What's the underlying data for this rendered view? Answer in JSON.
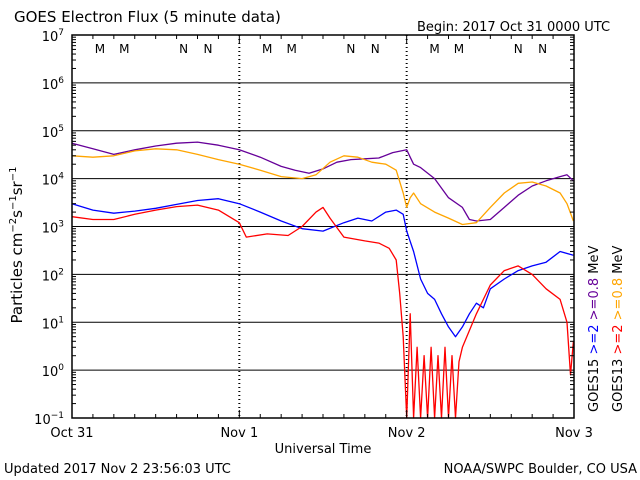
{
  "header": {
    "title": "GOES Electron Flux (5 minute data)",
    "begin": "Begin: 2017 Oct 31 0000 UTC"
  },
  "footer": {
    "updated": "Updated 2017 Nov  2 23:56:03 UTC",
    "source": "NOAA/SWPC Boulder, CO USA"
  },
  "colors": {
    "goes15_2mev": "#0000ff",
    "goes13_2mev": "#ff0000",
    "goes15_08mev": "#660099",
    "goes13_08mev": "#ffa500",
    "marker_m": "#ff0000",
    "marker_n": "#0000ff"
  },
  "chart_data": {
    "type": "line",
    "title": "GOES Electron Flux (5 minute data)",
    "xlabel": "Universal Time",
    "ylabel": "Particles cm-2s-1sr-1",
    "yscale": "log",
    "ylim": [
      0.1,
      10000000
    ],
    "xlim": [
      "2017-10-31 00:00",
      "2017-11-03 00:00"
    ],
    "x_ticks": [
      "Oct 31",
      "Nov 1",
      "Nov 2",
      "Nov 3"
    ],
    "y_tick_exponents": [
      -1,
      0,
      1,
      2,
      3,
      4,
      5,
      6,
      7
    ],
    "threshold_line": 1000,
    "grid": true,
    "legend": {
      "position": "right",
      "rows": [
        [
          {
            "text": "GOES15",
            "color": "#000000"
          },
          {
            "text": ">=2",
            "color": "#0000ff"
          },
          {
            "text": ">=0.8",
            "color": "#660099"
          },
          {
            "text": "MeV",
            "color": "#000000"
          }
        ],
        [
          {
            "text": "GOES13",
            "color": "#000000"
          },
          {
            "text": ">=2",
            "color": "#ff0000"
          },
          {
            "text": ">=0.8",
            "color": "#ffa500"
          },
          {
            "text": "MeV",
            "color": "#000000"
          }
        ]
      ]
    },
    "markers": [
      {
        "label": "M",
        "x": "2017-10-31 04:00",
        "color": "#ff0000"
      },
      {
        "label": "M",
        "x": "2017-10-31 07:30",
        "color": "#0000ff"
      },
      {
        "label": "N",
        "x": "2017-10-31 16:00",
        "color": "#ff0000"
      },
      {
        "label": "N",
        "x": "2017-10-31 19:30",
        "color": "#0000ff"
      },
      {
        "label": "M",
        "x": "2017-11-01 04:00",
        "color": "#ff0000"
      },
      {
        "label": "M",
        "x": "2017-11-01 07:30",
        "color": "#0000ff"
      },
      {
        "label": "N",
        "x": "2017-11-01 16:00",
        "color": "#ff0000"
      },
      {
        "label": "N",
        "x": "2017-11-01 19:30",
        "color": "#0000ff"
      },
      {
        "label": "M",
        "x": "2017-11-02 04:00",
        "color": "#ff0000"
      },
      {
        "label": "M",
        "x": "2017-11-02 07:30",
        "color": "#0000ff"
      },
      {
        "label": "N",
        "x": "2017-11-02 16:00",
        "color": "#ff0000"
      },
      {
        "label": "N",
        "x": "2017-11-02 19:30",
        "color": "#0000ff"
      }
    ],
    "series": [
      {
        "name": "GOES15 >=0.8 MeV",
        "color": "#660099",
        "x": [
          "2017-10-31 00:00",
          "2017-10-31 03:00",
          "2017-10-31 06:00",
          "2017-10-31 09:00",
          "2017-10-31 12:00",
          "2017-10-31 15:00",
          "2017-10-31 18:00",
          "2017-10-31 21:00",
          "2017-11-01 00:00",
          "2017-11-01 03:00",
          "2017-11-01 06:00",
          "2017-11-01 08:00",
          "2017-11-01 10:00",
          "2017-11-01 12:00",
          "2017-11-01 14:00",
          "2017-11-01 16:00",
          "2017-11-01 18:00",
          "2017-11-01 20:00",
          "2017-11-01 22:00",
          "2017-11-02 00:00",
          "2017-11-02 00:30",
          "2017-11-02 01:00",
          "2017-11-02 02:00",
          "2017-11-02 04:00",
          "2017-11-02 06:00",
          "2017-11-02 08:00",
          "2017-11-02 09:00",
          "2017-11-02 10:00",
          "2017-11-02 12:00",
          "2017-11-02 14:00",
          "2017-11-02 16:00",
          "2017-11-02 18:00",
          "2017-11-02 20:00",
          "2017-11-02 22:00",
          "2017-11-02 23:00",
          "2017-11-02 23:55"
        ],
        "y": [
          55000,
          42000,
          32000,
          40000,
          48000,
          55000,
          58000,
          50000,
          40000,
          28000,
          18000,
          15000,
          13000,
          16000,
          22000,
          25000,
          26000,
          27000,
          35000,
          40000,
          28000,
          20000,
          17000,
          10000,
          4000,
          2500,
          1400,
          1300,
          1400,
          2500,
          4500,
          7000,
          9000,
          11000,
          12000,
          9000
        ]
      },
      {
        "name": "GOES13 >=0.8 MeV",
        "color": "#ffa500",
        "x": [
          "2017-10-31 00:00",
          "2017-10-31 03:00",
          "2017-10-31 06:00",
          "2017-10-31 09:00",
          "2017-10-31 12:00",
          "2017-10-31 15:00",
          "2017-10-31 18:00",
          "2017-10-31 21:00",
          "2017-11-01 00:00",
          "2017-11-01 03:00",
          "2017-11-01 06:00",
          "2017-11-01 09:00",
          "2017-11-01 11:00",
          "2017-11-01 13:00",
          "2017-11-01 15:00",
          "2017-11-01 17:00",
          "2017-11-01 19:00",
          "2017-11-01 21:00",
          "2017-11-01 22:30",
          "2017-11-01 23:30",
          "2017-11-02 00:00",
          "2017-11-02 00:30",
          "2017-11-02 01:00",
          "2017-11-02 02:00",
          "2017-11-02 04:00",
          "2017-11-02 06:00",
          "2017-11-02 08:00",
          "2017-11-02 10:00",
          "2017-11-02 12:00",
          "2017-11-02 14:00",
          "2017-11-02 16:00",
          "2017-11-02 18:00",
          "2017-11-02 20:00",
          "2017-11-02 22:00",
          "2017-11-02 23:00",
          "2017-11-02 23:55"
        ],
        "y": [
          30000,
          28000,
          30000,
          38000,
          42000,
          40000,
          32000,
          25000,
          20000,
          15000,
          11000,
          10000,
          12000,
          22000,
          30000,
          28000,
          22000,
          20000,
          15000,
          5000,
          2500,
          4000,
          5000,
          3000,
          2000,
          1500,
          1100,
          1200,
          2500,
          5000,
          8000,
          8500,
          7000,
          5000,
          3000,
          1300
        ]
      },
      {
        "name": "GOES15 >=2 MeV",
        "color": "#0000ff",
        "x": [
          "2017-10-31 00:00",
          "2017-10-31 03:00",
          "2017-10-31 06:00",
          "2017-10-31 09:00",
          "2017-10-31 12:00",
          "2017-10-31 15:00",
          "2017-10-31 18:00",
          "2017-10-31 21:00",
          "2017-11-01 00:00",
          "2017-11-01 03:00",
          "2017-11-01 06:00",
          "2017-11-01 09:00",
          "2017-11-01 12:00",
          "2017-11-01 15:00",
          "2017-11-01 17:00",
          "2017-11-01 19:00",
          "2017-11-01 21:00",
          "2017-11-01 22:30",
          "2017-11-01 23:30",
          "2017-11-02 00:00",
          "2017-11-02 01:00",
          "2017-11-02 02:00",
          "2017-11-02 03:00",
          "2017-11-02 04:00",
          "2017-11-02 05:00",
          "2017-11-02 06:00",
          "2017-11-02 07:00",
          "2017-11-02 08:00",
          "2017-11-02 09:00",
          "2017-11-02 10:00",
          "2017-11-02 11:00",
          "2017-11-02 12:00",
          "2017-11-02 14:00",
          "2017-11-02 16:00",
          "2017-11-02 18:00",
          "2017-11-02 20:00",
          "2017-11-02 22:00",
          "2017-11-02 23:55"
        ],
        "y": [
          3000,
          2200,
          1900,
          2100,
          2400,
          2900,
          3500,
          3800,
          3000,
          2000,
          1300,
          900,
          800,
          1200,
          1500,
          1300,
          2000,
          2200,
          1800,
          800,
          300,
          80,
          40,
          30,
          15,
          8,
          5,
          8,
          15,
          25,
          20,
          50,
          80,
          120,
          150,
          180,
          300,
          250
        ]
      },
      {
        "name": "GOES13 >=2 MeV",
        "color": "#ff0000",
        "x": [
          "2017-10-31 00:00",
          "2017-10-31 03:00",
          "2017-10-31 06:00",
          "2017-10-31 09:00",
          "2017-10-31 12:00",
          "2017-10-31 15:00",
          "2017-10-31 18:00",
          "2017-10-31 21:00",
          "2017-11-01 00:00",
          "2017-11-01 01:00",
          "2017-11-01 04:00",
          "2017-11-01 07:00",
          "2017-11-01 09:00",
          "2017-11-01 11:00",
          "2017-11-01 12:00",
          "2017-11-01 13:00",
          "2017-11-01 15:00",
          "2017-11-01 18:00",
          "2017-11-01 20:00",
          "2017-11-01 21:30",
          "2017-11-01 22:30",
          "2017-11-01 23:00",
          "2017-11-01 23:30",
          "2017-11-02 00:00",
          "2017-11-02 00:30",
          "2017-11-02 01:00",
          "2017-11-02 01:30",
          "2017-11-02 02:00",
          "2017-11-02 02:30",
          "2017-11-02 03:00",
          "2017-11-02 03:30",
          "2017-11-02 04:00",
          "2017-11-02 04:30",
          "2017-11-02 05:00",
          "2017-11-02 05:30",
          "2017-11-02 06:00",
          "2017-11-02 06:30",
          "2017-11-02 07:00",
          "2017-11-02 07:30",
          "2017-11-02 08:00",
          "2017-11-02 10:00",
          "2017-11-02 12:00",
          "2017-11-02 14:00",
          "2017-11-02 16:00",
          "2017-11-02 18:00",
          "2017-11-02 20:00",
          "2017-11-02 22:00",
          "2017-11-02 23:00",
          "2017-11-02 23:30",
          "2017-11-02 23:55"
        ],
        "y": [
          1600,
          1400,
          1400,
          1800,
          2200,
          2600,
          2800,
          2200,
          1200,
          600,
          700,
          650,
          1000,
          2000,
          2500,
          1500,
          600,
          500,
          450,
          350,
          200,
          40,
          5,
          0.1,
          15,
          0.1,
          3,
          0.1,
          2,
          0.1,
          3,
          0.1,
          2,
          0.1,
          3,
          0.1,
          2,
          0.1,
          1.5,
          3,
          15,
          60,
          120,
          150,
          100,
          50,
          30,
          10,
          0.8,
          4
        ]
      }
    ]
  }
}
